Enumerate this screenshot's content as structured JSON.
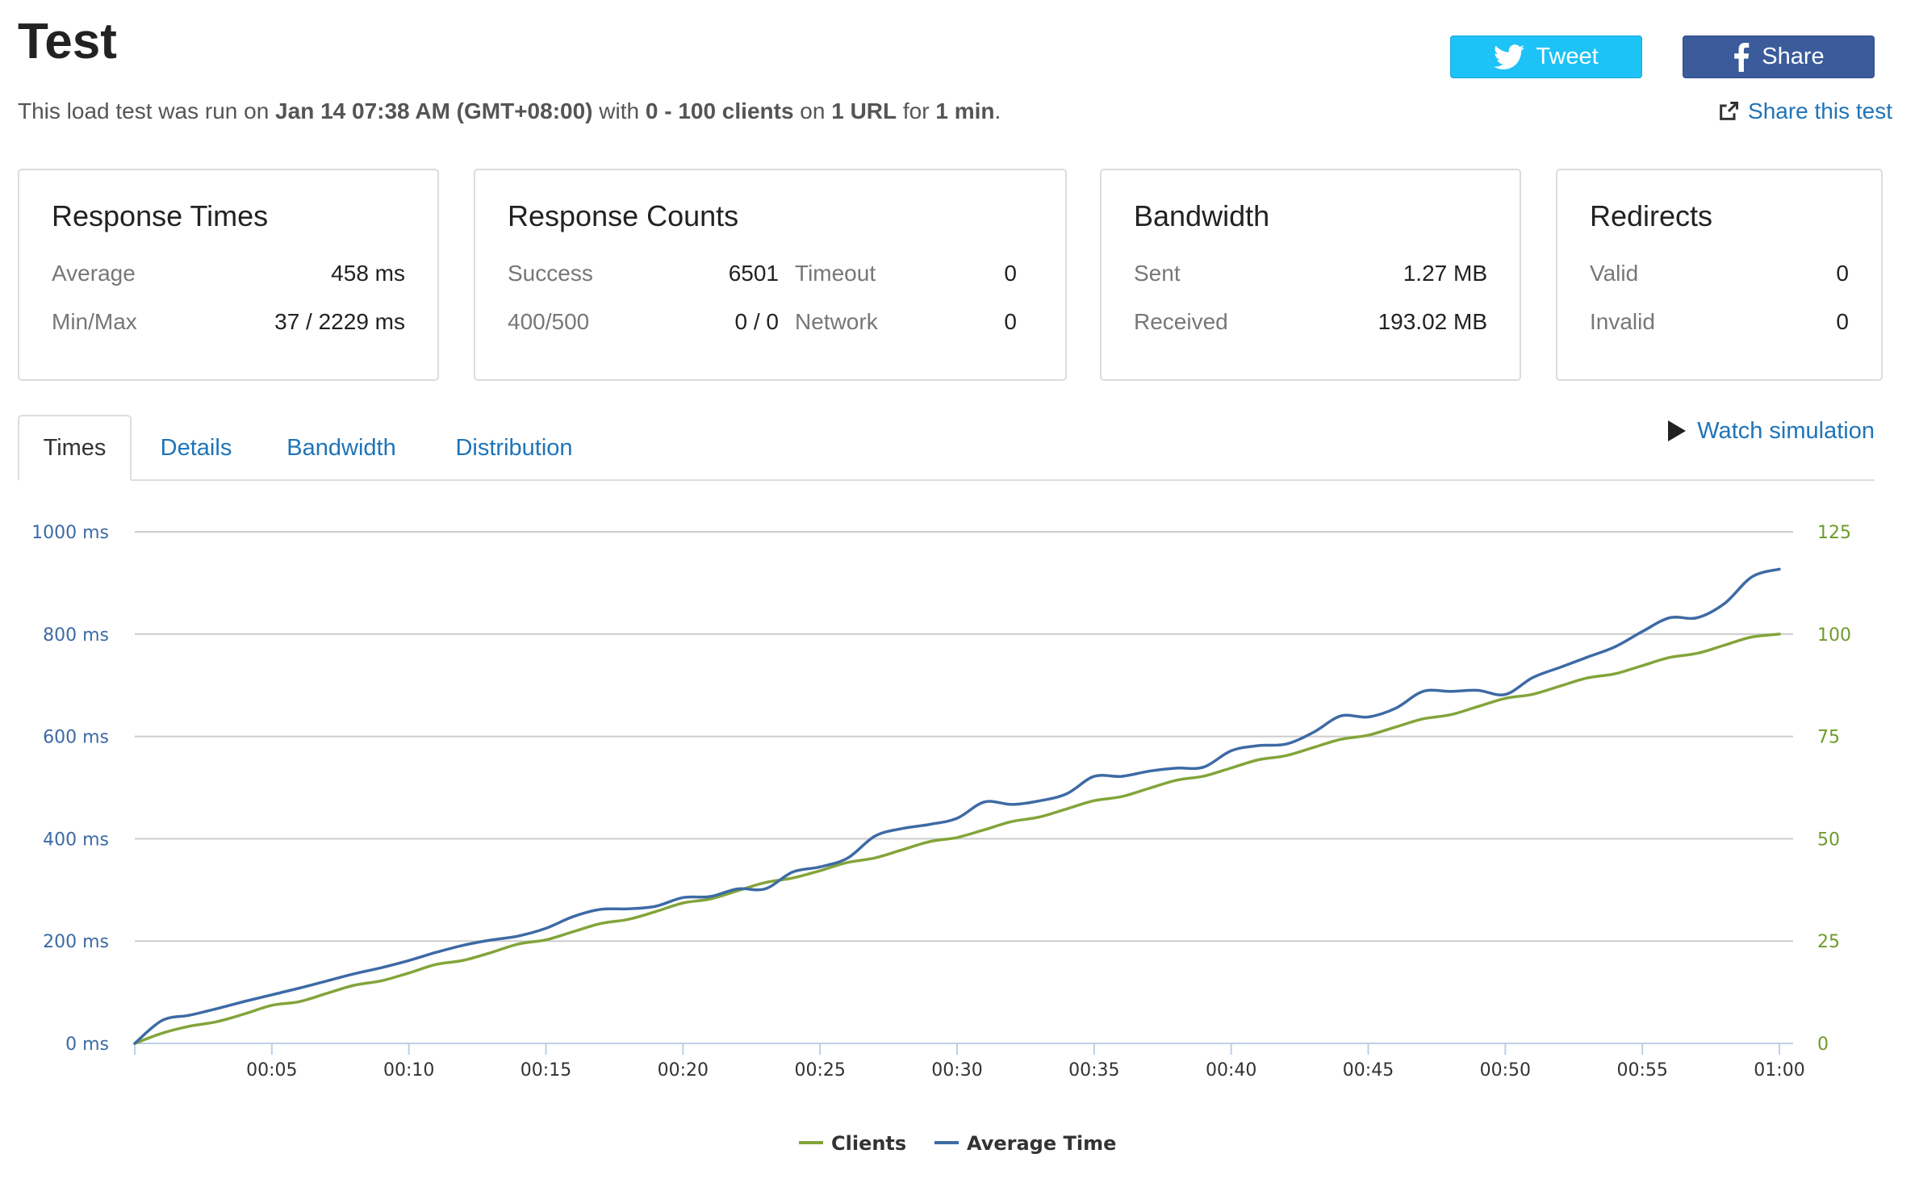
{
  "header": {
    "title": "Test",
    "subtitle": {
      "prefix": "This load test was run on ",
      "date": "Jan 14 07:38 AM (GMT+08:00)",
      "with": " with ",
      "clients": "0 - 100 clients",
      "on": " on ",
      "urls": "1 URL",
      "for": " for ",
      "duration": "1 min",
      "end": "."
    },
    "tweet_label": "Tweet",
    "share_label": "Share",
    "share_test_label": "Share this test",
    "colors": {
      "tweet": "#1dc2f6",
      "share": "#3b5b9b",
      "link": "#1f74b8"
    }
  },
  "cards": {
    "response_times": {
      "title": "Response Times",
      "average_label": "Average",
      "average_value": "458 ms",
      "minmax_label": "Min/Max",
      "minmax_value": "37 / 2229 ms"
    },
    "response_counts": {
      "title": "Response Counts",
      "success_label": "Success",
      "success_value": "6501",
      "timeout_label": "Timeout",
      "timeout_value": "0",
      "errors_label": "400/500",
      "errors_value": "0 / 0",
      "network_label": "Network",
      "network_value": "0"
    },
    "bandwidth": {
      "title": "Bandwidth",
      "sent_label": "Sent",
      "sent_value": "1.27 MB",
      "received_label": "Received",
      "received_value": "193.02 MB"
    },
    "redirects": {
      "title": "Redirects",
      "valid_label": "Valid",
      "valid_value": "0",
      "invalid_label": "Invalid",
      "invalid_value": "0"
    }
  },
  "tabs": [
    {
      "label": "Times",
      "active": true
    },
    {
      "label": "Details",
      "active": false
    },
    {
      "label": "Bandwidth",
      "active": false
    },
    {
      "label": "Distribution",
      "active": false
    }
  ],
  "watch_simulation_label": "Watch simulation",
  "chart_data": {
    "type": "line",
    "x_ticks": [
      "00:05",
      "00:10",
      "00:15",
      "00:20",
      "00:25",
      "00:30",
      "00:35",
      "00:40",
      "00:45",
      "00:50",
      "00:55",
      "01:00"
    ],
    "y_left": {
      "ticks": [
        "0 ms",
        "200 ms",
        "400 ms",
        "600 ms",
        "800 ms",
        "1000 ms"
      ],
      "range": [
        0,
        1000
      ],
      "color": "#3d6aa5"
    },
    "y_right": {
      "ticks": [
        "0",
        "25",
        "50",
        "75",
        "100",
        "125"
      ],
      "range": [
        0,
        125
      ],
      "color": "#6e9b2b"
    },
    "x_range_seconds": [
      0,
      60
    ],
    "grid": true,
    "legend_position": "bottom-center",
    "series": [
      {
        "name": "Clients",
        "axis": "right",
        "color": "#83a43a",
        "points": [
          [
            0,
            0
          ],
          [
            1,
            2.5
          ],
          [
            2,
            4.2
          ],
          [
            3,
            5.3
          ],
          [
            4,
            7.2
          ],
          [
            5,
            9.3
          ],
          [
            6,
            10.2
          ],
          [
            7,
            12.2
          ],
          [
            8,
            14.2
          ],
          [
            9,
            15.3
          ],
          [
            10,
            17.2
          ],
          [
            11,
            19.3
          ],
          [
            12,
            20.3
          ],
          [
            13,
            22.2
          ],
          [
            14,
            24.3
          ],
          [
            15,
            25.3
          ],
          [
            16,
            27.3
          ],
          [
            17,
            29.3
          ],
          [
            18,
            30.3
          ],
          [
            19,
            32.2
          ],
          [
            20,
            34.3
          ],
          [
            21,
            35.3
          ],
          [
            22,
            37.3
          ],
          [
            23,
            39.3
          ],
          [
            24,
            40.4
          ],
          [
            25,
            42.2
          ],
          [
            26,
            44.2
          ],
          [
            27,
            45.3
          ],
          [
            28,
            47.3
          ],
          [
            29,
            49.3
          ],
          [
            30,
            50.3
          ],
          [
            31,
            52.2
          ],
          [
            32,
            54.2
          ],
          [
            33,
            55.3
          ],
          [
            34,
            57.3
          ],
          [
            35,
            59.3
          ],
          [
            36,
            60.3
          ],
          [
            37,
            62.3
          ],
          [
            38,
            64.3
          ],
          [
            39,
            65.3
          ],
          [
            40,
            67.3
          ],
          [
            41,
            69.3
          ],
          [
            42,
            70.3
          ],
          [
            43,
            72.3
          ],
          [
            44,
            74.3
          ],
          [
            45,
            75.3
          ],
          [
            46,
            77.3
          ],
          [
            47,
            79.3
          ],
          [
            48,
            80.3
          ],
          [
            49,
            82.3
          ],
          [
            50,
            84.3
          ],
          [
            51,
            85.3
          ],
          [
            52,
            87.3
          ],
          [
            53,
            89.3
          ],
          [
            54,
            90.3
          ],
          [
            55,
            92.3
          ],
          [
            56,
            94.3
          ],
          [
            57,
            95.3
          ],
          [
            58,
            97.3
          ],
          [
            59,
            99.3
          ],
          [
            60,
            100
          ]
        ]
      },
      {
        "name": "Average Time",
        "axis": "left",
        "color": "#3d6aa5",
        "points": [
          [
            0,
            0
          ],
          [
            1,
            45
          ],
          [
            2,
            55
          ],
          [
            3,
            68
          ],
          [
            4,
            82
          ],
          [
            5,
            95
          ],
          [
            6,
            108
          ],
          [
            7,
            122
          ],
          [
            8,
            136
          ],
          [
            9,
            148
          ],
          [
            10,
            162
          ],
          [
            11,
            178
          ],
          [
            12,
            192
          ],
          [
            13,
            202
          ],
          [
            14,
            210
          ],
          [
            15,
            225
          ],
          [
            16,
            248
          ],
          [
            17,
            262
          ],
          [
            18,
            263
          ],
          [
            19,
            268
          ],
          [
            20,
            285
          ],
          [
            21,
            287
          ],
          [
            22,
            302
          ],
          [
            23,
            302
          ],
          [
            24,
            335
          ],
          [
            25,
            345
          ],
          [
            26,
            362
          ],
          [
            27,
            405
          ],
          [
            28,
            420
          ],
          [
            29,
            428
          ],
          [
            30,
            440
          ],
          [
            31,
            472
          ],
          [
            32,
            467
          ],
          [
            33,
            474
          ],
          [
            34,
            488
          ],
          [
            35,
            522
          ],
          [
            36,
            522
          ],
          [
            37,
            532
          ],
          [
            38,
            538
          ],
          [
            39,
            540
          ],
          [
            40,
            572
          ],
          [
            41,
            582
          ],
          [
            42,
            585
          ],
          [
            43,
            608
          ],
          [
            44,
            640
          ],
          [
            45,
            638
          ],
          [
            46,
            655
          ],
          [
            47,
            688
          ],
          [
            48,
            688
          ],
          [
            49,
            690
          ],
          [
            50,
            682
          ],
          [
            51,
            715
          ],
          [
            52,
            735
          ],
          [
            53,
            755
          ],
          [
            54,
            775
          ],
          [
            55,
            805
          ],
          [
            56,
            832
          ],
          [
            57,
            832
          ],
          [
            58,
            860
          ],
          [
            59,
            912
          ],
          [
            60,
            927
          ]
        ]
      }
    ]
  }
}
